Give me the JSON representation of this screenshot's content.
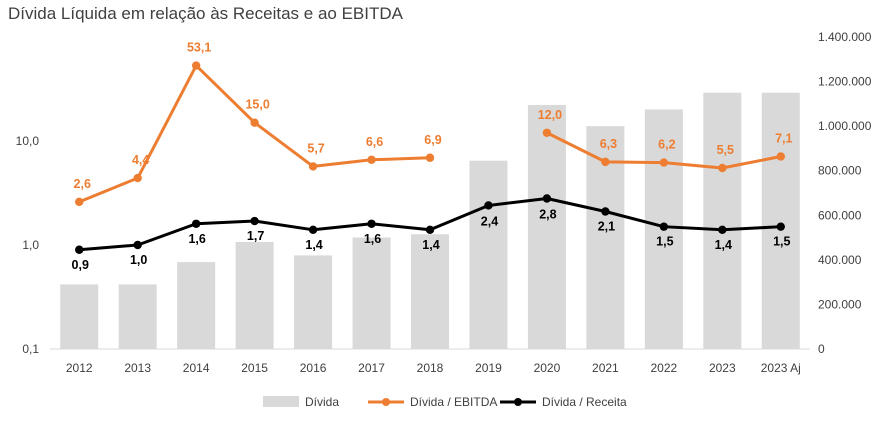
{
  "title": "Dívida Líquida em relação às Receitas e ao EBITDA",
  "chart_data": {
    "type": "bar",
    "title": "Dívida Líquida em relação às Receitas e ao EBITDA",
    "categories": [
      "2012",
      "2013",
      "2014",
      "2015",
      "2016",
      "2017",
      "2018",
      "2019",
      "2020",
      "2021",
      "2022",
      "2023",
      "2023 Aj"
    ],
    "left_axis": {
      "scale": "log",
      "range": [
        0.1,
        100
      ],
      "tick_labels": [
        "0,1",
        "1,0",
        "10,0"
      ],
      "tick_values": [
        0.1,
        1,
        10
      ]
    },
    "right_axis": {
      "scale": "linear",
      "range": [
        0,
        1400000
      ],
      "tick_labels": [
        "0",
        "200.000",
        "400.000",
        "600.000",
        "800.000",
        "1.000.000",
        "1.200.000",
        "1.400.000"
      ],
      "tick_values": [
        0,
        200000,
        400000,
        600000,
        800000,
        1000000,
        1200000,
        1400000
      ]
    },
    "grid": false,
    "legend_position": "bottom",
    "series": [
      {
        "name": "Dívida",
        "type": "bar",
        "axis": "right",
        "color": "#D9D9D9",
        "values": [
          290000,
          290000,
          390000,
          480000,
          420000,
          500000,
          515000,
          845000,
          1095000,
          1000000,
          1075000,
          1150000,
          1150000
        ]
      },
      {
        "name": "Dívida  / EBITDA",
        "type": "line",
        "axis": "left",
        "color": "#ED7D31",
        "values": [
          2.6,
          4.4,
          53.1,
          15.0,
          5.7,
          6.6,
          6.9,
          null,
          12.0,
          6.3,
          6.2,
          5.5,
          7.1
        ],
        "labels": [
          "2,6",
          "4,4",
          "53,1",
          "15,0",
          "5,7",
          "6,6",
          "6,9",
          "",
          "12,0",
          "6,3",
          "6,2",
          "5,5",
          "7,1"
        ]
      },
      {
        "name": "Dívida / Receita",
        "type": "line",
        "axis": "left",
        "color": "#000000",
        "values": [
          0.9,
          1.0,
          1.6,
          1.7,
          1.4,
          1.6,
          1.4,
          2.4,
          2.8,
          2.1,
          1.5,
          1.4,
          1.5
        ],
        "labels": [
          "0,9",
          "1,0",
          "1,6",
          "1,7",
          "1,4",
          "1,6",
          "1,4",
          "2,4",
          "2,8",
          "2,1",
          "1,5",
          "1,4",
          "1,5"
        ]
      }
    ]
  }
}
